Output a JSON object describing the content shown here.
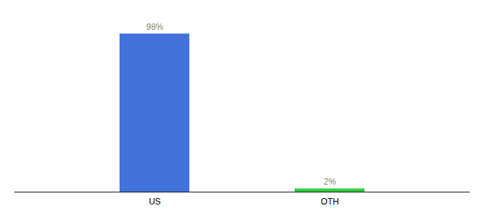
{
  "chart_data": {
    "type": "bar",
    "categories": [
      "US",
      "OTH"
    ],
    "values": [
      98,
      2
    ],
    "value_labels": [
      "98%",
      "2%"
    ],
    "colors": [
      "#4472db",
      "#2ecc40"
    ],
    "ylim": [
      0,
      110
    ],
    "data_labels": true,
    "tick_labels": "x"
  }
}
